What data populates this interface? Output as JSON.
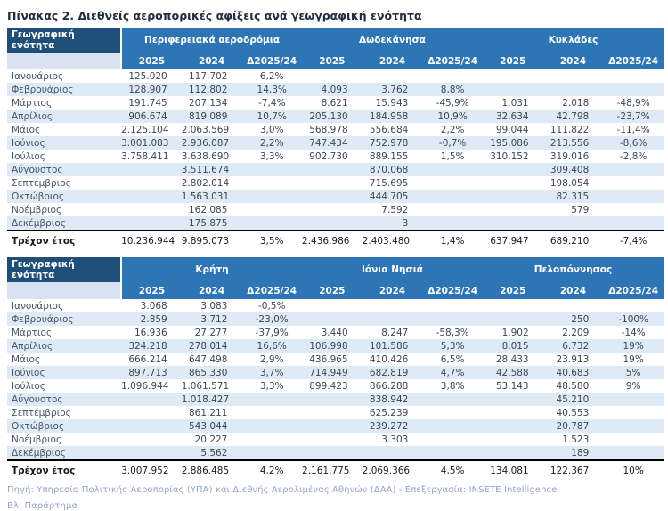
{
  "title": "Πίνακας 2. Διεθνείς αεροπορικές αφίξεις ανά γεωγραφική ενότητα",
  "accents": {
    "header_blue": "#2e75b6",
    "corner_navy": "#1f4e79",
    "alt_row_blue": "#deebf7",
    "corner_sub_blue": "#d9e2f0",
    "footer_text": "#93a5c9",
    "total_border": "#000000"
  },
  "tables": [
    {
      "corner_label": "Γεωγραφική ενότητα",
      "groups": [
        {
          "name": "Περιφερειακά αεροδρόμια",
          "cols": [
            "2025",
            "2024",
            "Δ2025/24"
          ]
        },
        {
          "name": "Δωδεκάνησα",
          "cols": [
            "2025",
            "2024",
            "Δ2025/24"
          ]
        },
        {
          "name": "Κυκλάδες",
          "cols": [
            "2025",
            "2024",
            "Δ2025/24"
          ]
        }
      ],
      "rows": [
        {
          "label": "Ιανουάριος",
          "cells": [
            "125.020",
            "117.702",
            "6,2%",
            "",
            "",
            "",
            "",
            "",
            ""
          ]
        },
        {
          "label": "Φεβρουάριος",
          "cells": [
            "128.907",
            "112.802",
            "14,3%",
            "4.093",
            "3.762",
            "8,8%",
            "",
            "",
            ""
          ]
        },
        {
          "label": "Μάρτιος",
          "cells": [
            "191.745",
            "207.134",
            "-7,4%",
            "8.621",
            "15.943",
            "-45,9%",
            "1.031",
            "2.018",
            "-48,9%"
          ]
        },
        {
          "label": "Απρίλιος",
          "cells": [
            "906.674",
            "819.089",
            "10,7%",
            "205.130",
            "184.958",
            "10,9%",
            "32.634",
            "42.798",
            "-23,7%"
          ]
        },
        {
          "label": "Μάιος",
          "cells": [
            "2.125.104",
            "2.063.569",
            "3,0%",
            "568.978",
            "556.684",
            "2,2%",
            "99.044",
            "111.822",
            "-11,4%"
          ]
        },
        {
          "label": "Ιούνιος",
          "cells": [
            "3.001.083",
            "2.936.087",
            "2,2%",
            "747.434",
            "752.978",
            "-0,7%",
            "195.086",
            "213.556",
            "-8,6%"
          ]
        },
        {
          "label": "Ιούλιος",
          "cells": [
            "3.758.411",
            "3.638.690",
            "3,3%",
            "902.730",
            "889.155",
            "1,5%",
            "310.152",
            "319.016",
            "-2,8%"
          ]
        },
        {
          "label": "Αύγουστος",
          "cells": [
            "",
            "3.511.674",
            "",
            "",
            "870.068",
            "",
            "",
            "309.408",
            ""
          ]
        },
        {
          "label": "Σεπτέμβριος",
          "cells": [
            "",
            "2.802.014",
            "",
            "",
            "715.695",
            "",
            "",
            "198.054",
            ""
          ]
        },
        {
          "label": "Οκτώβριος",
          "cells": [
            "",
            "1.563.031",
            "",
            "",
            "444.705",
            "",
            "",
            "82.315",
            ""
          ]
        },
        {
          "label": "Νοέμβριος",
          "cells": [
            "",
            "162.085",
            "",
            "",
            "7.592",
            "",
            "",
            "579",
            ""
          ]
        },
        {
          "label": "Δεκέμβριος",
          "cells": [
            "",
            "175.875",
            "",
            "",
            "3",
            "",
            "",
            "",
            ""
          ]
        }
      ],
      "total": {
        "label": "Τρέχον έτος",
        "cells": [
          "10.236.944",
          "9.895.073",
          "3,5%",
          "2.436.986",
          "2.403.480",
          "1,4%",
          "637.947",
          "689.210",
          "-7,4%"
        ]
      }
    },
    {
      "corner_label": "Γεωγραφική ενότητα",
      "groups": [
        {
          "name": "Κρήτη",
          "cols": [
            "2025",
            "2024",
            "Δ2025/24"
          ]
        },
        {
          "name": "Ιόνια Νησιά",
          "cols": [
            "2025",
            "2024",
            "Δ2025/24"
          ]
        },
        {
          "name": "Πελοπόννησος",
          "cols": [
            "2025",
            "2024",
            "Δ2025/24"
          ]
        }
      ],
      "rows": [
        {
          "label": "Ιανουάριος",
          "cells": [
            "3.068",
            "3.083",
            "-0,5%",
            "",
            "",
            "",
            "",
            "",
            ""
          ]
        },
        {
          "label": "Φεβρουάριος",
          "cells": [
            "2.859",
            "3.712",
            "-23,0%",
            "",
            "",
            "",
            "",
            "250",
            "-100%"
          ]
        },
        {
          "label": "Μάρτιος",
          "cells": [
            "16.936",
            "27.277",
            "-37,9%",
            "3.440",
            "8.247",
            "-58,3%",
            "1.902",
            "2.209",
            "-14%"
          ]
        },
        {
          "label": "Απρίλιος",
          "cells": [
            "324.218",
            "278.014",
            "16,6%",
            "106.998",
            "101.586",
            "5,3%",
            "8.015",
            "6.732",
            "19%"
          ]
        },
        {
          "label": "Μάιος",
          "cells": [
            "666.214",
            "647.498",
            "2,9%",
            "436.965",
            "410.426",
            "6,5%",
            "28.433",
            "23.913",
            "19%"
          ]
        },
        {
          "label": "Ιούνιος",
          "cells": [
            "897.713",
            "865.330",
            "3,7%",
            "714.949",
            "682.819",
            "4,7%",
            "42.588",
            "40.683",
            "5%"
          ]
        },
        {
          "label": "Ιούλιος",
          "cells": [
            "1.096.944",
            "1.061.571",
            "3,3%",
            "899.423",
            "866.288",
            "3,8%",
            "53.143",
            "48.580",
            "9%"
          ]
        },
        {
          "label": "Αύγουστος",
          "cells": [
            "",
            "1.018.427",
            "",
            "",
            "838.942",
            "",
            "",
            "45.210",
            ""
          ]
        },
        {
          "label": "Σεπτέμβριος",
          "cells": [
            "",
            "861.211",
            "",
            "",
            "625.239",
            "",
            "",
            "40.553",
            ""
          ]
        },
        {
          "label": "Οκτώβριος",
          "cells": [
            "",
            "543.044",
            "",
            "",
            "239.272",
            "",
            "",
            "20.787",
            ""
          ]
        },
        {
          "label": "Νοέμβριος",
          "cells": [
            "",
            "20.227",
            "",
            "",
            "3.303",
            "",
            "",
            "1.523",
            ""
          ]
        },
        {
          "label": "Δεκέμβριος",
          "cells": [
            "",
            "5.562",
            "",
            "",
            "",
            "",
            "",
            "189",
            ""
          ]
        }
      ],
      "total": {
        "label": "Τρέχον έτος",
        "cells": [
          "3.007.952",
          "2.886.485",
          "4,2%",
          "2.161.775",
          "2.069.366",
          "4,5%",
          "134.081",
          "122.367",
          "10%"
        ]
      }
    }
  ],
  "footer": {
    "source": "Πηγή: Υπηρεσία Πολιτικής Αεροπορίας (ΥΠΑ)  και Διεθνής  Αερολιμένας Αθηνών (ΔΑΑ) - Επεξεργασία: INSETE Intelligence",
    "note": "Βλ. Παράρτημα"
  }
}
